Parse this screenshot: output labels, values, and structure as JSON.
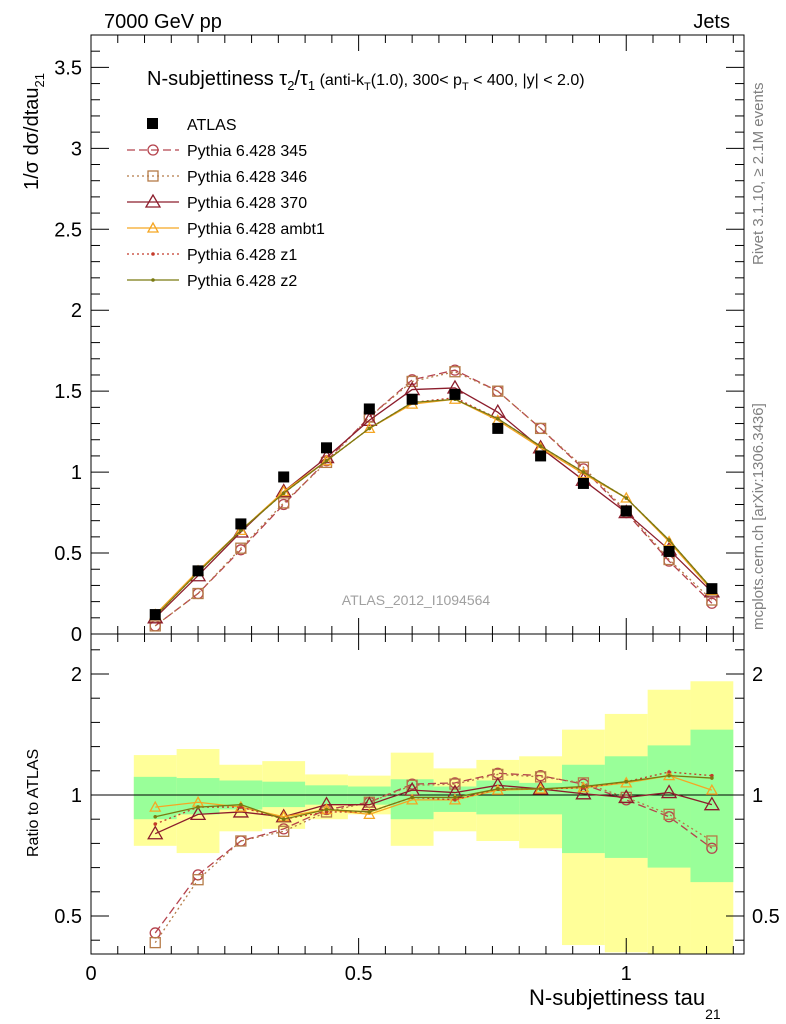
{
  "header": {
    "energy": "7000 GeV pp",
    "category": "Jets",
    "rivet": "Rivet 3.1.10, ≥ 2.1M events",
    "mcplots": "mcplots.cern.ch [arXiv:1306.3436]"
  },
  "chart_data": {
    "type": "line",
    "title": "N-subjettiness τ₂/τ₁ (anti-k_T(1.0), 300< p_T < 400, |y| < 2.0)",
    "xlabel": "N-subjettiness tau_21",
    "ylabel": "1/σ dσ/dtau_21",
    "ratio_ylabel": "Ratio to ATLAS",
    "analysis_label": "ATLAS_2012_I1094564",
    "xlim": [
      0,
      1.22
    ],
    "ylim": [
      0,
      3.7
    ],
    "ratio_ylim": [
      0.35,
      2.25
    ],
    "x_ticks": [
      "0",
      "0.5",
      "1"
    ],
    "y_ticks": [
      "0",
      "0.5",
      "1",
      "1.5",
      "2",
      "2.5",
      "3",
      "3.5"
    ],
    "ratio_ticks": [
      "0.5",
      "1",
      "2"
    ],
    "legend_position": "top-left",
    "x": [
      0.12,
      0.2,
      0.28,
      0.36,
      0.44,
      0.52,
      0.6,
      0.68,
      0.76,
      0.84,
      0.92,
      1.0,
      1.08,
      1.16
    ],
    "bin_edges": [
      0.08,
      0.16,
      0.24,
      0.32,
      0.4,
      0.48,
      0.56,
      0.64,
      0.72,
      0.8,
      0.88,
      0.96,
      1.04,
      1.12,
      1.2
    ],
    "data": {
      "name": "ATLAS",
      "values": [
        0.12,
        0.39,
        0.68,
        0.97,
        1.15,
        1.39,
        1.45,
        1.48,
        1.27,
        1.1,
        0.93,
        0.76,
        0.51,
        0.28
      ],
      "band_green": [
        [
          0.9,
          1.15
        ],
        [
          0.92,
          1.14
        ],
        [
          0.94,
          1.12
        ],
        [
          0.95,
          1.11
        ],
        [
          0.96,
          1.08
        ],
        [
          0.96,
          1.07
        ],
        [
          0.9,
          1.13
        ],
        [
          0.93,
          1.07
        ],
        [
          0.92,
          1.12
        ],
        [
          0.92,
          1.1
        ],
        [
          0.76,
          1.25
        ],
        [
          0.74,
          1.32
        ],
        [
          0.7,
          1.41
        ],
        [
          0.64,
          1.54
        ]
      ],
      "band_yellow": [
        [
          0.79,
          1.33
        ],
        [
          0.76,
          1.38
        ],
        [
          0.85,
          1.25
        ],
        [
          0.86,
          1.28
        ],
        [
          0.9,
          1.17
        ],
        [
          0.92,
          1.16
        ],
        [
          0.79,
          1.35
        ],
        [
          0.85,
          1.22
        ],
        [
          0.81,
          1.29
        ],
        [
          0.78,
          1.32
        ],
        [
          0.38,
          1.54
        ],
        [
          0.35,
          1.67
        ],
        [
          0.3,
          1.87
        ],
        [
          0.2,
          1.94
        ]
      ]
    },
    "series": [
      {
        "name": "Pythia 6.428 345",
        "color": "#b5434d",
        "dash": "8,4",
        "marker": "circle",
        "values": [
          0.05,
          0.25,
          0.52,
          0.8,
          1.07,
          1.34,
          1.57,
          1.63,
          1.5,
          1.27,
          1.02,
          0.75,
          0.45,
          0.19
        ],
        "ratio": [
          0.43,
          0.67,
          0.81,
          0.86,
          0.94,
          0.97,
          1.09,
          1.1,
          1.18,
          1.16,
          1.09,
          0.98,
          0.91,
          0.78
        ]
      },
      {
        "name": "Pythia 6.428 346",
        "color": "#b57b47",
        "dash": "2,3",
        "marker": "square",
        "values": [
          0.05,
          0.25,
          0.53,
          0.81,
          1.06,
          1.34,
          1.56,
          1.62,
          1.5,
          1.27,
          1.03,
          0.76,
          0.46,
          0.21
        ],
        "ratio": [
          0.39,
          0.65,
          0.81,
          0.85,
          0.93,
          0.97,
          1.08,
          1.09,
          1.17,
          1.15,
          1.1,
          0.99,
          0.92,
          0.81
        ]
      },
      {
        "name": "Pythia 6.428 370",
        "color": "#8c1d2c",
        "dash": "",
        "marker": "triangle",
        "values": [
          0.1,
          0.36,
          0.63,
          0.88,
          1.09,
          1.32,
          1.51,
          1.52,
          1.37,
          1.15,
          0.95,
          0.75,
          0.52,
          0.26
        ],
        "ratio": [
          0.84,
          0.92,
          0.93,
          0.91,
          0.96,
          0.96,
          1.04,
          1.02,
          1.08,
          1.05,
          1.01,
          0.99,
          1.02,
          0.96
        ]
      },
      {
        "name": "Pythia 6.428 ambt1",
        "color": "#f5a623",
        "dash": "",
        "marker": "triangle-small",
        "values": [
          0.12,
          0.39,
          0.64,
          0.88,
          1.07,
          1.27,
          1.42,
          1.45,
          1.32,
          1.15,
          0.99,
          0.84,
          0.57,
          0.27
        ],
        "ratio": [
          0.95,
          0.97,
          0.95,
          0.91,
          0.94,
          0.92,
          0.98,
          0.98,
          1.04,
          1.05,
          1.06,
          1.1,
          1.16,
          1.04
        ]
      },
      {
        "name": "Pythia 6.428 z1",
        "color": "#c43a2a",
        "dash": "2,3",
        "marker": "dot",
        "values": [
          0.11,
          0.38,
          0.64,
          0.87,
          1.07,
          1.27,
          1.43,
          1.46,
          1.33,
          1.16,
          1.0,
          0.84,
          0.58,
          0.28
        ],
        "ratio": [
          0.88,
          0.95,
          0.95,
          0.9,
          0.93,
          0.93,
          0.99,
          0.98,
          1.05,
          1.05,
          1.06,
          1.11,
          1.19,
          1.16
        ]
      },
      {
        "name": "Pythia 6.428 z2",
        "color": "#7a7a10",
        "dash": "",
        "marker": "dot",
        "values": [
          0.11,
          0.38,
          0.64,
          0.87,
          1.07,
          1.27,
          1.43,
          1.45,
          1.33,
          1.16,
          1.0,
          0.84,
          0.58,
          0.28
        ],
        "ratio": [
          0.91,
          0.95,
          0.96,
          0.9,
          0.94,
          0.93,
          0.99,
          0.99,
          1.05,
          1.05,
          1.07,
          1.11,
          1.16,
          1.14
        ]
      }
    ]
  }
}
